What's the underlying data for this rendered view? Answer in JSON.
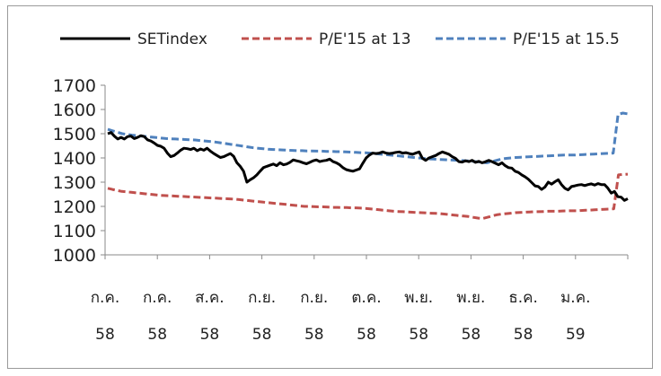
{
  "chart_data": {
    "type": "line",
    "title": "",
    "xlabel": "",
    "ylabel": "",
    "ylim": [
      1000,
      1700
    ],
    "yticks": [
      1000,
      1100,
      1200,
      1300,
      1400,
      1500,
      1600,
      1700
    ],
    "grid": false,
    "legend_position": "top",
    "x_tick_labels": [
      {
        "month": "ก.ค.",
        "year": "58"
      },
      {
        "month": "ก.ค.",
        "year": "58"
      },
      {
        "month": "ส.ค.",
        "year": "58"
      },
      {
        "month": "ก.ย.",
        "year": "58"
      },
      {
        "month": "ก.ย.",
        "year": "58"
      },
      {
        "month": "ต.ค.",
        "year": "58"
      },
      {
        "month": "พ.ย.",
        "year": "58"
      },
      {
        "month": "พ.ย.",
        "year": "58"
      },
      {
        "month": "ธ.ค.",
        "year": "58"
      },
      {
        "month": "ม.ค.",
        "year": "59"
      }
    ],
    "series": [
      {
        "name": "SETindex",
        "color": "#000000",
        "style": "solid",
        "values": [
          1500,
          1505,
          1490,
          1478,
          1485,
          1478,
          1488,
          1490,
          1480,
          1485,
          1492,
          1488,
          1475,
          1470,
          1462,
          1452,
          1448,
          1440,
          1420,
          1405,
          1410,
          1420,
          1432,
          1440,
          1438,
          1435,
          1440,
          1430,
          1437,
          1432,
          1440,
          1428,
          1418,
          1410,
          1402,
          1405,
          1412,
          1418,
          1407,
          1380,
          1365,
          1345,
          1300,
          1310,
          1318,
          1330,
          1345,
          1360,
          1365,
          1370,
          1375,
          1368,
          1380,
          1372,
          1375,
          1382,
          1392,
          1388,
          1385,
          1380,
          1376,
          1382,
          1388,
          1392,
          1385,
          1388,
          1390,
          1395,
          1385,
          1380,
          1372,
          1360,
          1352,
          1348,
          1345,
          1350,
          1355,
          1378,
          1400,
          1412,
          1420,
          1418,
          1420,
          1425,
          1420,
          1418,
          1420,
          1423,
          1425,
          1420,
          1422,
          1418,
          1415,
          1420,
          1425,
          1398,
          1390,
          1400,
          1405,
          1410,
          1418,
          1425,
          1420,
          1415,
          1405,
          1398,
          1385,
          1383,
          1388,
          1385,
          1390,
          1382,
          1386,
          1380,
          1384,
          1390,
          1385,
          1378,
          1372,
          1380,
          1368,
          1360,
          1358,
          1345,
          1340,
          1330,
          1322,
          1312,
          1298,
          1285,
          1282,
          1270,
          1280,
          1300,
          1292,
          1302,
          1310,
          1290,
          1275,
          1268,
          1282,
          1285,
          1288,
          1290,
          1286,
          1290,
          1293,
          1288,
          1294,
          1290,
          1290,
          1275,
          1255,
          1262,
          1240,
          1238,
          1225,
          1232
        ]
      },
      {
        "name": "P/E'15 at 13",
        "color": "#c0504d",
        "style": "dashed",
        "values": [
          1275,
          1270,
          1266,
          1262,
          1260,
          1258,
          1256,
          1254,
          1252,
          1250,
          1248,
          1246,
          1245,
          1244,
          1243,
          1242,
          1241,
          1240,
          1239,
          1238,
          1237,
          1236,
          1235,
          1234,
          1233,
          1232,
          1231,
          1230,
          1228,
          1226,
          1224,
          1222,
          1220,
          1218,
          1216,
          1214,
          1212,
          1210,
          1208,
          1206,
          1204,
          1202,
          1200,
          1200,
          1199,
          1198,
          1198,
          1197,
          1196,
          1196,
          1195,
          1195,
          1194,
          1194,
          1193,
          1192,
          1190,
          1188,
          1186,
          1184,
          1182,
          1180,
          1179,
          1178,
          1177,
          1176,
          1175,
          1174,
          1173,
          1172,
          1171,
          1170,
          1168,
          1166,
          1164,
          1162,
          1160,
          1158,
          1155,
          1152,
          1150,
          1155,
          1160,
          1165,
          1168,
          1170,
          1172,
          1174,
          1175,
          1176,
          1177,
          1178,
          1178,
          1179,
          1180,
          1180,
          1180,
          1181,
          1182,
          1182,
          1182,
          1183,
          1184,
          1185,
          1186,
          1187,
          1188,
          1189,
          1190,
          1330,
          1332,
          1333
        ]
      },
      {
        "name": "P/E'15 at 15.5",
        "color": "#4f81bd",
        "style": "dashed",
        "values": [
          1518,
          1512,
          1506,
          1500,
          1497,
          1494,
          1492,
          1490,
          1488,
          1486,
          1484,
          1482,
          1480,
          1479,
          1478,
          1477,
          1476,
          1475,
          1474,
          1472,
          1470,
          1468,
          1466,
          1463,
          1460,
          1457,
          1454,
          1451,
          1448,
          1445,
          1442,
          1440,
          1438,
          1436,
          1435,
          1434,
          1433,
          1432,
          1431,
          1430,
          1430,
          1429,
          1429,
          1428,
          1428,
          1427,
          1427,
          1426,
          1426,
          1425,
          1424,
          1423,
          1422,
          1421,
          1420,
          1418,
          1416,
          1414,
          1412,
          1410,
          1408,
          1406,
          1404,
          1402,
          1400,
          1398,
          1396,
          1395,
          1394,
          1393,
          1392,
          1391,
          1390,
          1389,
          1388,
          1386,
          1384,
          1382,
          1380,
          1385,
          1390,
          1395,
          1398,
          1400,
          1402,
          1403,
          1404,
          1405,
          1406,
          1407,
          1408,
          1409,
          1410,
          1411,
          1412,
          1412,
          1412,
          1413,
          1414,
          1415,
          1416,
          1417,
          1418,
          1419,
          1420,
          1580,
          1585,
          1582
        ]
      }
    ]
  }
}
